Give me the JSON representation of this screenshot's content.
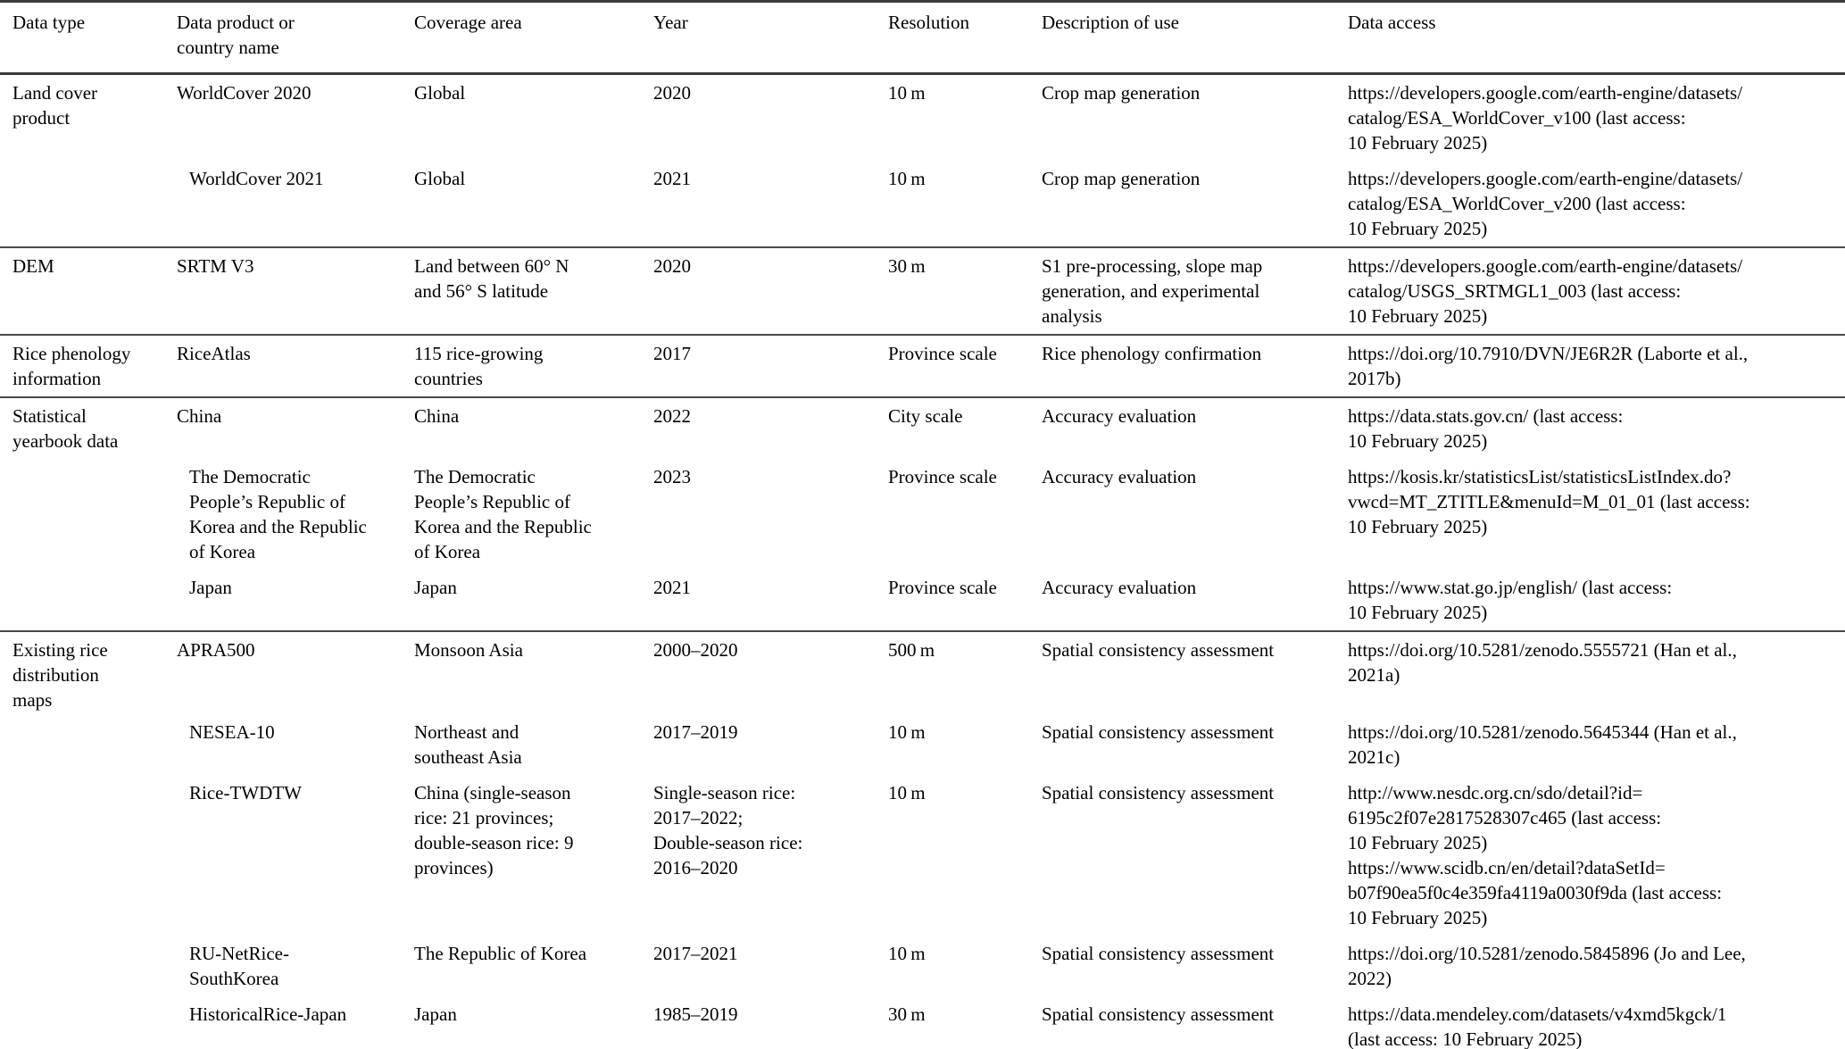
{
  "table": {
    "columns": [
      "Data type",
      "Data product or\ncountry name",
      "Coverage area",
      "Year",
      "Resolution",
      "Description of use",
      "Data access"
    ],
    "groups": [
      {
        "label": "Land cover\nproduct",
        "rows": [
          {
            "product": "WorldCover 2020",
            "coverage": "Global",
            "year": "2020",
            "resolution": "10 m",
            "description": "Crop map generation",
            "access": "https://developers.google.com/earth-engine/datasets/\ncatalog/ESA_WorldCover_v100 (last access:\n10 February 2025)"
          },
          {
            "product": "WorldCover 2021",
            "coverage": "Global",
            "year": "2021",
            "resolution": "10 m",
            "description": "Crop map generation",
            "access": "https://developers.google.com/earth-engine/datasets/\ncatalog/ESA_WorldCover_v200 (last access:\n10 February 2025)"
          }
        ]
      },
      {
        "label": "DEM",
        "rows": [
          {
            "product": "SRTM V3",
            "coverage": "Land between 60° N\nand 56° S latitude",
            "year": "2020",
            "resolution": "30 m",
            "description": "S1 pre-processing, slope map\ngeneration, and experimental\nanalysis",
            "access": "https://developers.google.com/earth-engine/datasets/\ncatalog/USGS_SRTMGL1_003 (last access:\n10 February 2025)"
          }
        ]
      },
      {
        "label": "Rice phenology\ninformation",
        "rows": [
          {
            "product": "RiceAtlas",
            "coverage": "115 rice-growing\ncountries",
            "year": "2017",
            "resolution": "Province scale",
            "description": "Rice phenology confirmation",
            "access": "https://doi.org/10.7910/DVN/JE6R2R (Laborte et al.,\n2017b)"
          }
        ]
      },
      {
        "label": "Statistical\nyearbook data",
        "rows": [
          {
            "product": "China",
            "coverage": "China",
            "year": "2022",
            "resolution": "City scale",
            "description": "Accuracy evaluation",
            "access": "https://data.stats.gov.cn/ (last access:\n10 February 2025)"
          },
          {
            "product": "The Democratic\nPeople’s Republic of\nKorea and the Republic\nof Korea",
            "coverage": "The Democratic\nPeople’s Republic of\nKorea and the Republic\nof Korea",
            "year": "2023",
            "resolution": "Province scale",
            "description": "Accuracy evaluation",
            "access": "https://kosis.kr/statisticsList/statisticsListIndex.do?\nvwcd=MT_ZTITLE&menuId=M_01_01 (last access:\n10 February 2025)"
          },
          {
            "product": "Japan",
            "coverage": "Japan",
            "year": "2021",
            "resolution": "Province scale",
            "description": "Accuracy evaluation",
            "access": "https://www.stat.go.jp/english/ (last access:\n10 February 2025)"
          }
        ]
      },
      {
        "label": "Existing rice\ndistribution\nmaps",
        "rows": [
          {
            "product": "APRA500",
            "coverage": "Monsoon Asia",
            "year": "2000–2020",
            "resolution": "500 m",
            "description": "Spatial consistency assessment",
            "access": "https://doi.org/10.5281/zenodo.5555721 (Han et al.,\n2021a)"
          },
          {
            "product": "NESEA-10",
            "coverage": "Northeast and\nsoutheast Asia",
            "year": "2017–2019",
            "resolution": "10 m",
            "description": "Spatial consistency assessment",
            "access": "https://doi.org/10.5281/zenodo.5645344 (Han et al.,\n2021c)"
          },
          {
            "product": "Rice-TWDTW",
            "coverage": "China (single-season\nrice: 21 provinces;\ndouble-season rice: 9\nprovinces)",
            "year": "Single-season rice:\n2017–2022;\nDouble-season rice:\n2016–2020",
            "resolution": "10 m",
            "description": "Spatial consistency assessment",
            "access": "http://www.nesdc.org.cn/sdo/detail?id=\n6195c2f07e2817528307c465 (last access:\n10 February 2025)\nhttps://www.scidb.cn/en/detail?dataSetId=\nb07f90ea5f0c4e359fa4119a0030f9da (last access:\n10 February 2025)"
          },
          {
            "product": "RU-NetRice-\nSouthKorea",
            "coverage": "The Republic of Korea",
            "year": "2017–2021",
            "resolution": "10 m",
            "description": "Spatial consistency assessment",
            "access": "https://doi.org/10.5281/zenodo.5845896 (Jo and Lee,\n2022)"
          },
          {
            "product": "HistoricalRice-Japan",
            "coverage": "Japan",
            "year": "1985–2019",
            "resolution": "30 m",
            "description": "Spatial consistency assessment",
            "access": "https://data.mendeley.com/datasets/v4xmd5kgck/1\n(last access: 10 February 2025)"
          }
        ]
      }
    ]
  }
}
